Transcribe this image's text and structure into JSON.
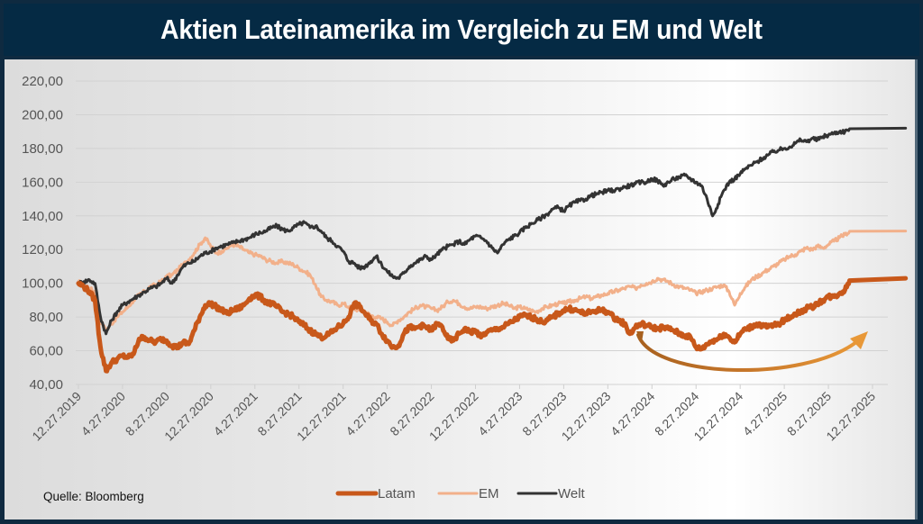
{
  "title": "Aktien Lateinamerika im Vergleich zu EM und Welt",
  "source": "Quelle: Bloomberg",
  "colors": {
    "Latam": "#c8581a",
    "EM": "#f2b08a",
    "Welt": "#333333",
    "arrow": "#d4822e"
  },
  "chart_data": {
    "type": "line",
    "title": "Aktien Lateinamerika im Vergleich zu EM und Welt",
    "xlabel": "",
    "ylabel": "",
    "ylim": [
      40,
      220
    ],
    "yticks": [
      "220,00",
      "200,00",
      "180,00",
      "160,00",
      "140,00",
      "120,00",
      "100,00",
      "80,00",
      "60,00",
      "40,00"
    ],
    "ytick_values": [
      220,
      200,
      180,
      160,
      140,
      120,
      100,
      80,
      60,
      40
    ],
    "xticks": [
      "12.27.2019",
      "4.27.2020",
      "8.27.2020",
      "12.27.2020",
      "4.27.2021",
      "8.27.2021",
      "12.27.2021",
      "4.27.2022",
      "8.27.2022",
      "12.27.2022",
      "4.27.2023",
      "8.27.2023",
      "12.27.2023",
      "4.27.2024",
      "8.27.2024",
      "12.27.2024",
      "4.27.2025",
      "8.27.2025",
      "12.27.2025"
    ],
    "x_unit": "months since 12.27.2019",
    "grid": true,
    "legend": "bottom-center",
    "annotation": "curved arrow under Latam from ~Apr 2024 to ~Dec 2025 (U-shaped recovery)",
    "x": [
      0,
      0.5,
      1,
      1.5,
      2,
      2.5,
      3,
      3.5,
      4,
      4.5,
      5,
      5.5,
      6,
      6.5,
      7,
      7.5,
      8,
      8.5,
      9,
      9.5,
      10,
      10.5,
      11,
      11.5,
      12,
      12.5,
      13,
      13.5,
      14,
      14.5,
      15,
      15.5,
      16,
      16.5,
      17,
      17.5,
      18,
      18.5,
      19,
      19.5,
      20,
      20.5,
      21,
      21.5,
      22,
      22.5,
      23,
      23.5,
      24,
      24.5,
      25,
      25.5,
      26,
      26.5,
      27,
      27.5,
      28,
      28.5,
      29,
      29.5,
      30,
      30.5,
      31,
      31.5,
      32,
      32.5,
      33,
      33.5,
      34,
      34.5,
      35,
      35.5,
      36,
      36.5,
      37,
      37.5,
      38,
      38.5,
      39,
      39.5,
      40,
      40.5,
      41,
      41.5,
      42,
      42.5,
      43,
      43.5,
      44,
      44.5,
      45,
      45.5,
      46,
      46.5,
      47,
      47.5,
      48,
      48.5,
      49,
      49.5,
      50,
      50.5,
      51,
      51.5,
      52,
      52.5,
      53,
      53.5,
      54,
      54.5,
      55,
      55.5,
      56,
      56.5,
      57,
      57.5,
      58,
      58.5,
      59,
      59.5,
      60,
      60.5,
      61,
      61.5,
      62,
      62.5,
      63,
      63.5,
      64,
      64.5,
      65,
      65.5,
      66,
      66.5,
      67,
      67.5,
      68,
      68.5,
      69,
      69.5,
      70,
      70.5,
      71,
      71.5,
      72,
      72.5,
      73,
      73.5,
      74,
      74.5,
      75
    ],
    "series": [
      {
        "name": "Latam",
        "values": [
          100,
          98,
          95,
          90,
          62,
          48,
          53,
          55,
          57,
          56,
          58,
          67,
          68,
          66,
          65,
          67,
          66,
          63,
          62,
          65,
          64,
          72,
          80,
          87,
          88,
          86,
          84,
          82,
          84,
          85,
          87,
          91,
          93,
          92,
          89,
          88,
          86,
          83,
          82,
          80,
          77,
          75,
          72,
          70,
          68,
          69,
          71,
          74,
          76,
          80,
          88,
          86,
          82,
          78,
          76,
          70,
          66,
          62,
          63,
          70,
          74,
          73,
          75,
          74,
          72,
          76,
          74,
          67,
          66,
          70,
          73,
          71,
          72,
          68,
          71,
          72,
          73,
          74,
          76,
          78,
          80,
          81,
          80,
          79,
          77,
          78,
          80,
          82,
          84,
          85,
          84,
          83,
          82,
          83,
          84,
          84,
          83,
          80,
          78,
          76,
          70,
          74,
          76,
          75,
          74,
          73,
          74,
          73,
          72,
          70,
          69,
          68,
          62,
          61,
          64,
          66,
          67,
          70,
          68,
          65,
          70,
          73,
          74,
          76,
          75,
          74,
          75,
          76,
          78,
          80,
          82,
          83,
          85,
          86,
          88,
          90,
          92,
          92,
          94,
          96,
          103
        ]
      },
      {
        "name": "EM",
        "values": [
          101,
          99,
          97,
          95,
          78,
          72,
          76,
          80,
          83,
          86,
          90,
          93,
          95,
          98,
          99,
          101,
          104,
          105,
          108,
          111,
          114,
          118,
          123,
          127,
          122,
          118,
          119,
          121,
          123,
          122,
          120,
          118,
          117,
          116,
          114,
          113,
          112,
          113,
          112,
          111,
          109,
          107,
          105,
          99,
          92,
          90,
          89,
          87,
          88,
          86,
          85,
          84,
          83,
          81,
          80,
          79,
          77,
          75,
          78,
          80,
          83,
          85,
          87,
          86,
          85,
          84,
          86,
          89,
          90,
          88,
          86,
          85,
          86,
          86,
          85,
          86,
          87,
          88,
          87,
          85,
          86,
          85,
          84,
          83,
          85,
          86,
          87,
          88,
          88,
          89,
          90,
          91,
          92,
          91,
          92,
          93,
          94,
          95,
          96,
          97,
          98,
          97,
          99,
          100,
          101,
          103,
          102,
          101,
          99,
          98,
          97,
          96,
          94,
          95,
          96,
          97,
          98,
          99,
          95,
          87,
          94,
          98,
          102,
          104,
          106,
          108,
          110,
          112,
          114,
          116,
          117,
          119,
          121,
          120,
          122,
          121,
          123,
          125,
          127,
          129,
          131
        ]
      },
      {
        "name": "Welt",
        "values": [
          100,
          101,
          102,
          100,
          80,
          70,
          78,
          83,
          87,
          89,
          91,
          93,
          95,
          97,
          98,
          100,
          103,
          100,
          105,
          110,
          112,
          113,
          116,
          118,
          119,
          121,
          122,
          123,
          124,
          125,
          126,
          127,
          129,
          130,
          131,
          133,
          134,
          132,
          131,
          133,
          135,
          136,
          133,
          134,
          131,
          127,
          125,
          122,
          119,
          113,
          112,
          109,
          110,
          113,
          116,
          111,
          107,
          104,
          103,
          106,
          110,
          112,
          114,
          116,
          114,
          117,
          120,
          122,
          123,
          125,
          123,
          126,
          128,
          127,
          125,
          121,
          118,
          123,
          126,
          128,
          130,
          133,
          135,
          137,
          139,
          141,
          144,
          145,
          143,
          146,
          148,
          149,
          150,
          152,
          153,
          154,
          155,
          155,
          156,
          157,
          158,
          159,
          160,
          160,
          162,
          161,
          158,
          160,
          162,
          163,
          164,
          162,
          160,
          158,
          150,
          140,
          147,
          155,
          160,
          162,
          165,
          168,
          170,
          172,
          174,
          176,
          178,
          179,
          180,
          181,
          183,
          185,
          184,
          186,
          185,
          187,
          188,
          189,
          190,
          190,
          192
        ]
      }
    ]
  }
}
